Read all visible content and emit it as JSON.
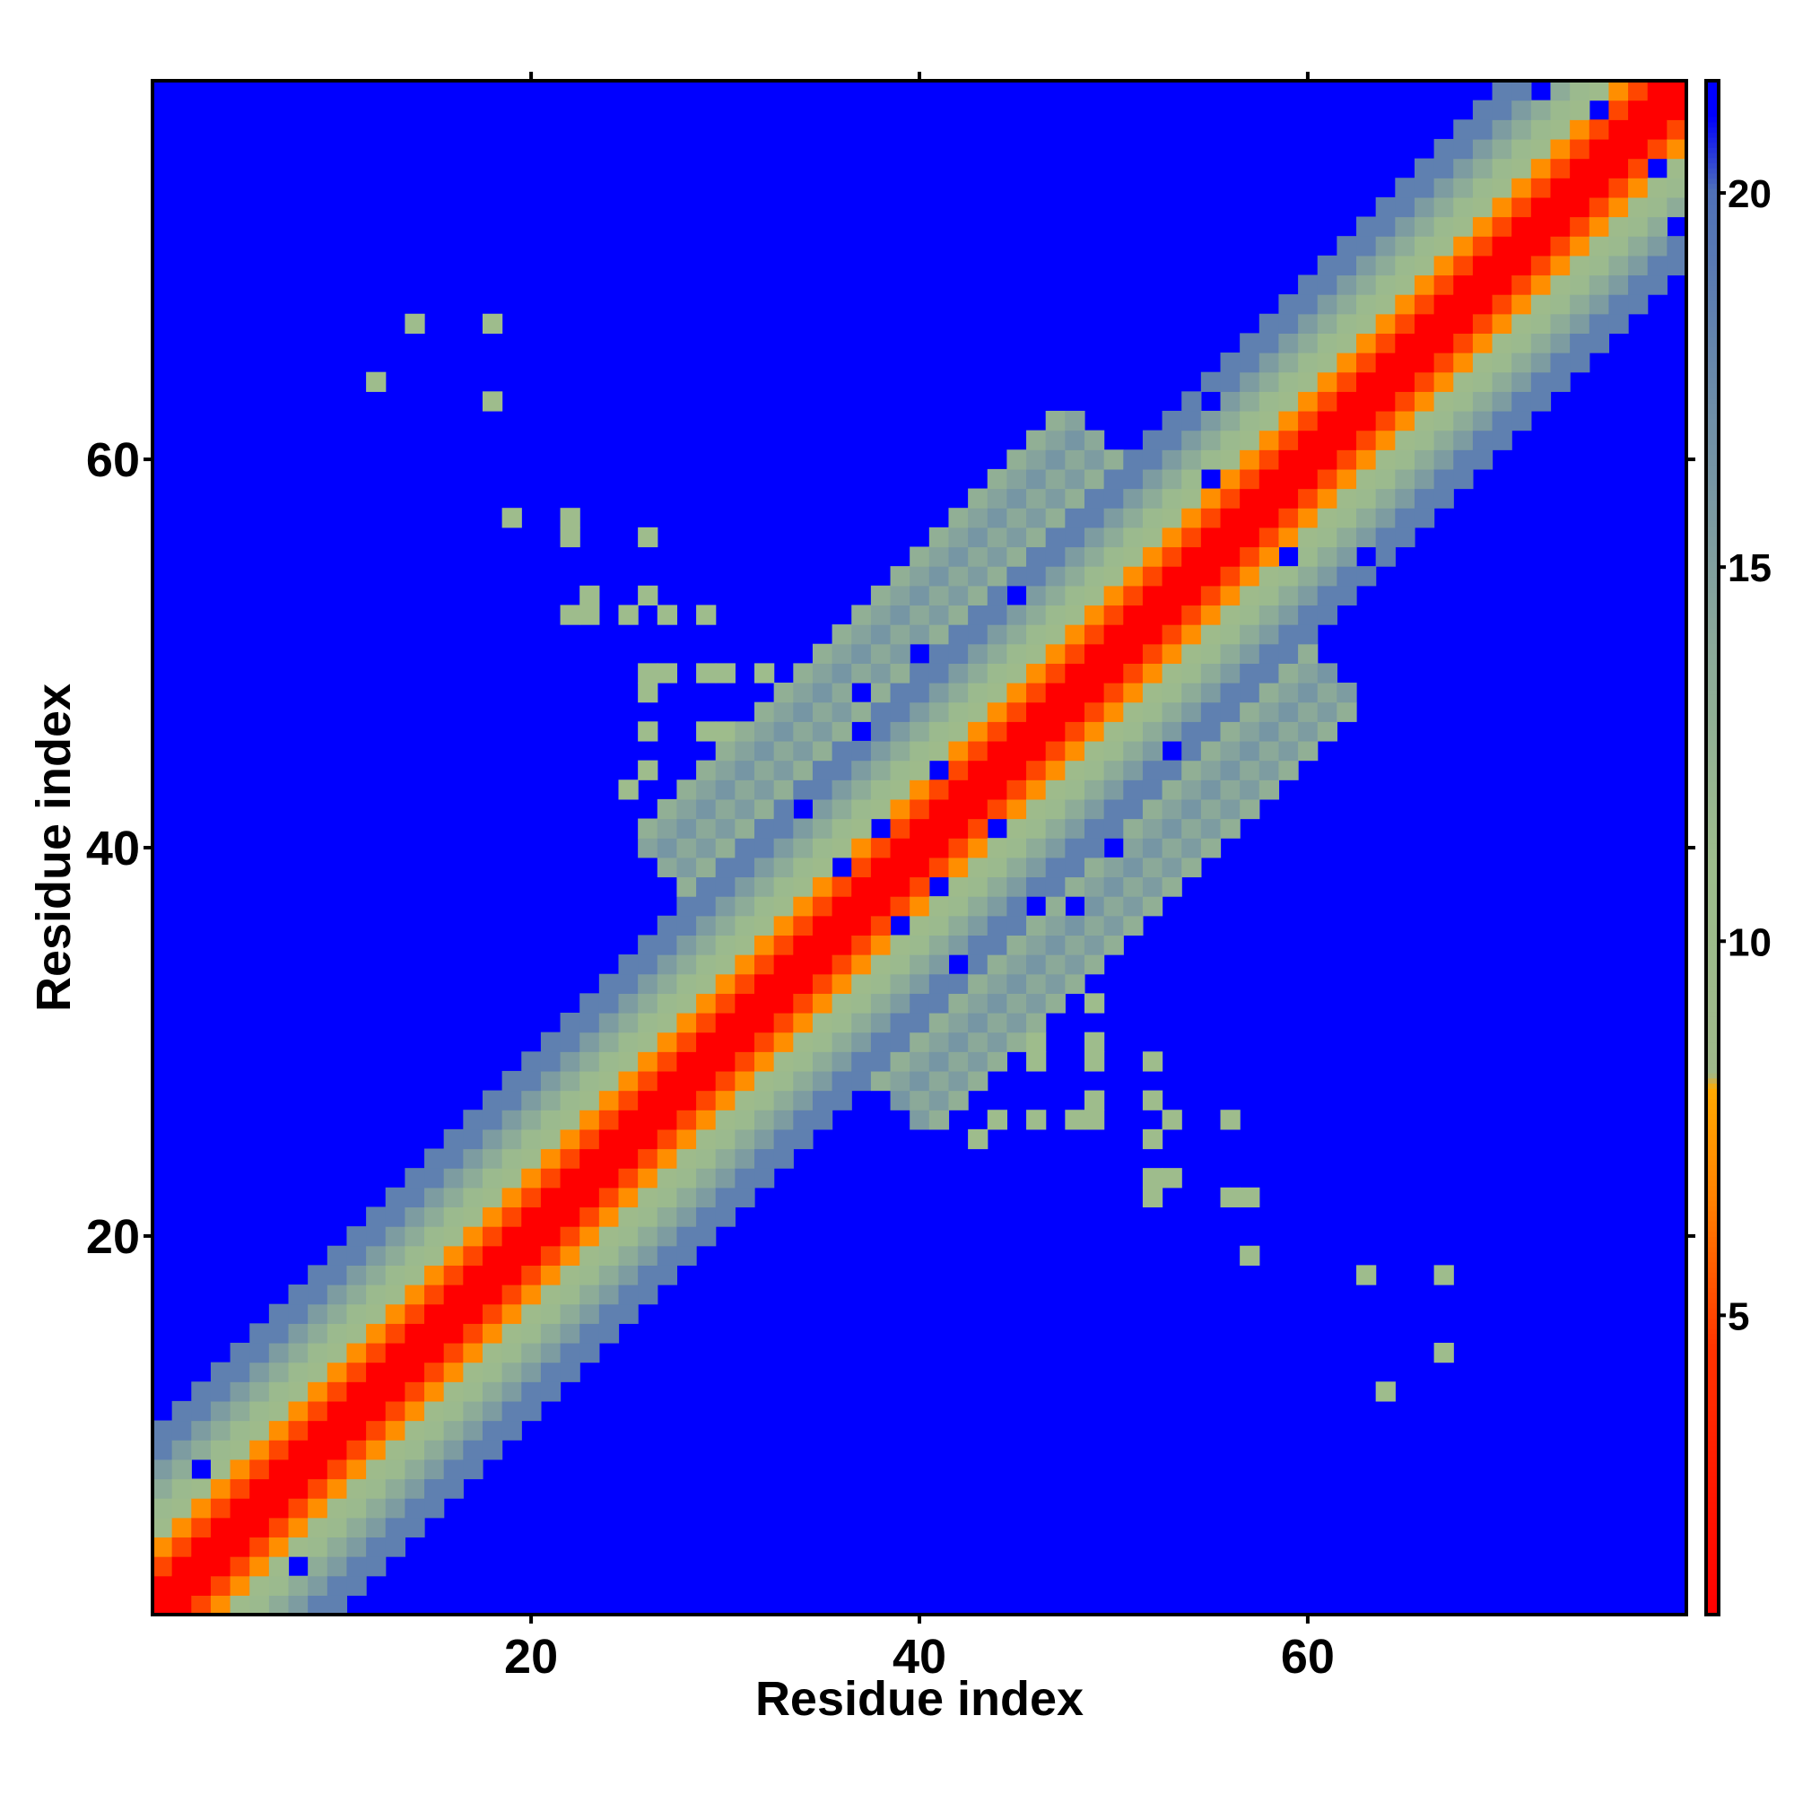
{
  "chart_data": {
    "type": "heatmap",
    "title": "",
    "xlabel": "Residue index",
    "ylabel": "Residue index",
    "n_residues": 79,
    "xlim": [
      1,
      79
    ],
    "ylim": [
      1,
      79
    ],
    "x_ticks": [
      20,
      40,
      60
    ],
    "y_ticks": [
      20,
      40,
      60
    ],
    "colorbar": {
      "ticks": [
        5,
        10,
        15,
        20
      ],
      "range": [
        1,
        21.5
      ],
      "stops": [
        {
          "value": 1.0,
          "color": "#ff0000"
        },
        {
          "value": 4.5,
          "color": "#ff3300"
        },
        {
          "value": 6.5,
          "color": "#ff8000"
        },
        {
          "value": 8.0,
          "color": "#ffaa00"
        },
        {
          "value": 8.2,
          "color": "#9fb88a"
        },
        {
          "value": 11.0,
          "color": "#9ebd8c"
        },
        {
          "value": 14.0,
          "color": "#8aa89a"
        },
        {
          "value": 17.0,
          "color": "#6f8fa8"
        },
        {
          "value": 20.0,
          "color": "#4f70b8"
        },
        {
          "value": 21.0,
          "color": "#0000ff"
        },
        {
          "value": 21.5,
          "color": "#0000ff"
        }
      ]
    },
    "background_value": 22,
    "band": [
      {
        "offset_max": 1,
        "value": 1.0
      },
      {
        "offset_max": 2,
        "value": 5.0
      },
      {
        "offset_max": 3,
        "value": 7.0
      },
      {
        "offset_max": 4,
        "value": 10.0
      },
      {
        "offset_max": 5,
        "value": 11.5
      },
      {
        "offset_max": 6,
        "value": 13.5
      },
      {
        "offset_max": 7,
        "value": 15.5
      },
      {
        "offset_max": 9,
        "value": 18.5
      }
    ],
    "core_region": {
      "from": 33,
      "to": 55,
      "max_offset": 15,
      "value": 13.0
    },
    "contacts": [
      {
        "i": 14,
        "j": 67,
        "value": 10.5
      },
      {
        "i": 18,
        "j": 67,
        "value": 10.5
      },
      {
        "i": 12,
        "j": 64,
        "value": 10.5
      },
      {
        "i": 18,
        "j": 63,
        "value": 10.5
      },
      {
        "i": 19,
        "j": 57,
        "value": 10.5
      },
      {
        "i": 22,
        "j": 57,
        "value": 10.5
      },
      {
        "i": 22,
        "j": 56,
        "value": 10.5
      },
      {
        "i": 26,
        "j": 56,
        "value": 10.5
      },
      {
        "i": 22,
        "j": 52,
        "value": 10.5
      },
      {
        "i": 23,
        "j": 52,
        "value": 10.5
      },
      {
        "i": 23,
        "j": 53,
        "value": 10.5
      },
      {
        "i": 25,
        "j": 52,
        "value": 10.5
      },
      {
        "i": 26,
        "j": 53,
        "value": 10.5
      },
      {
        "i": 27,
        "j": 52,
        "value": 10.5
      },
      {
        "i": 29,
        "j": 52,
        "value": 10.5
      },
      {
        "i": 26,
        "j": 49,
        "value": 10.5
      },
      {
        "i": 27,
        "j": 49,
        "value": 10.5
      },
      {
        "i": 26,
        "j": 48,
        "value": 10.5
      },
      {
        "i": 29,
        "j": 49,
        "value": 10.5
      },
      {
        "i": 30,
        "j": 49,
        "value": 10.5
      },
      {
        "i": 32,
        "j": 49,
        "value": 10.5
      },
      {
        "i": 26,
        "j": 46,
        "value": 10.5
      },
      {
        "i": 29,
        "j": 46,
        "value": 10.5
      },
      {
        "i": 30,
        "j": 46,
        "value": 10.5
      },
      {
        "i": 25,
        "j": 43,
        "value": 10.5
      },
      {
        "i": 26,
        "j": 44,
        "value": 10.5
      }
    ],
    "contacts_mirrored": true,
    "holes": [
      {
        "i": 3,
        "j": 8
      },
      {
        "i": 8,
        "j": 3
      },
      {
        "i": 38,
        "j": 41
      },
      {
        "i": 41,
        "j": 38
      },
      {
        "i": 45,
        "j": 53
      },
      {
        "i": 53,
        "j": 45
      },
      {
        "i": 55,
        "j": 59
      },
      {
        "i": 59,
        "j": 55
      },
      {
        "i": 63,
        "j": 55
      },
      {
        "i": 55,
        "j": 63
      },
      {
        "i": 75,
        "j": 78
      },
      {
        "i": 78,
        "j": 75
      },
      {
        "i": 72,
        "j": 79
      },
      {
        "i": 79,
        "j": 72
      },
      {
        "i": 37,
        "j": 48
      },
      {
        "i": 48,
        "j": 37
      },
      {
        "i": 40,
        "j": 50
      },
      {
        "i": 50,
        "j": 40
      },
      {
        "i": 44,
        "j": 41
      },
      {
        "i": 41,
        "j": 44
      },
      {
        "i": 34,
        "j": 42
      },
      {
        "i": 42,
        "j": 34
      },
      {
        "i": 36,
        "j": 39
      },
      {
        "i": 39,
        "j": 36
      },
      {
        "i": 46,
        "j": 37
      },
      {
        "i": 37,
        "j": 46
      }
    ]
  }
}
